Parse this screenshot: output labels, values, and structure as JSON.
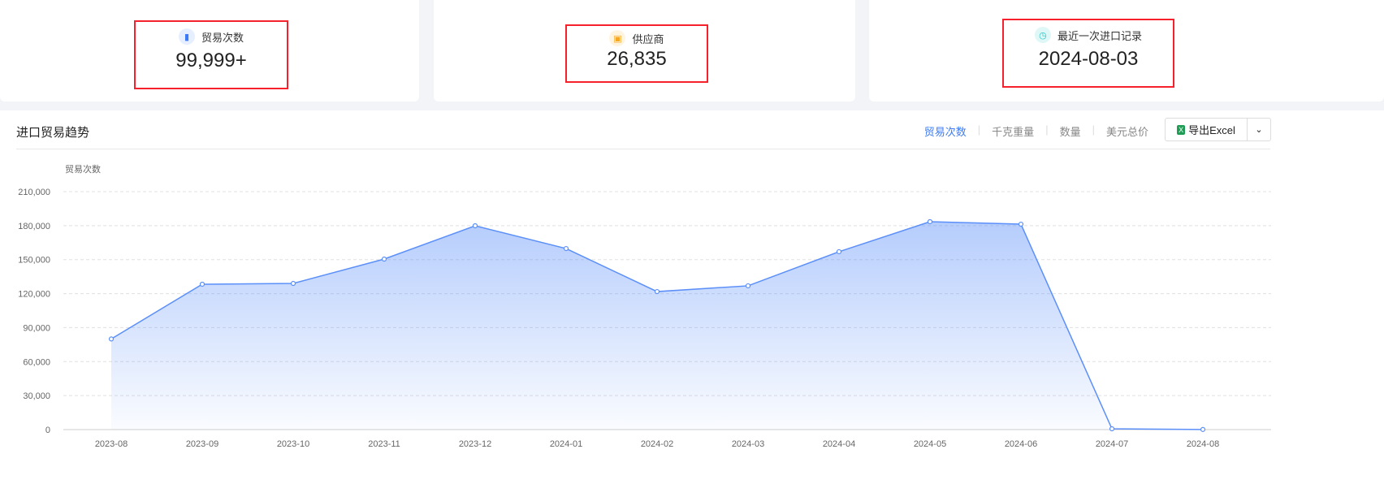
{
  "stats": [
    {
      "label": "贸易次数",
      "value": "99,999+",
      "icon": "bar-chart-icon",
      "color": "#3d7bf6"
    },
    {
      "label": "供应商",
      "value": "26,835",
      "icon": "store-icon",
      "color": "#f5a623"
    },
    {
      "label": "最近一次进口记录",
      "value": "2024-08-03",
      "icon": "clock-icon",
      "color": "#26c6c6"
    }
  ],
  "panel": {
    "title": "进口贸易趋势",
    "tabs": [
      "贸易次数",
      "千克重量",
      "数量",
      "美元总价"
    ],
    "active_tab": 0,
    "export_label": "导出Excel"
  },
  "chart_data": {
    "type": "area",
    "ylabel": "贸易次数",
    "ylim": [
      0,
      210000
    ],
    "yticks": [
      "0",
      "30,000",
      "60,000",
      "90,000",
      "120,000",
      "150,000",
      "180,000",
      "210,000"
    ],
    "categories": [
      "2023-08",
      "2023-09",
      "2023-10",
      "2023-11",
      "2023-12",
      "2024-01",
      "2024-02",
      "2024-03",
      "2024-04",
      "2024-05",
      "2024-06",
      "2024-07",
      "2024-08"
    ],
    "values": [
      80000,
      128300,
      129000,
      150500,
      179900,
      159800,
      121800,
      126900,
      157000,
      183500,
      181300,
      700,
      100
    ],
    "color": "#5b8ff9",
    "grid": true
  }
}
